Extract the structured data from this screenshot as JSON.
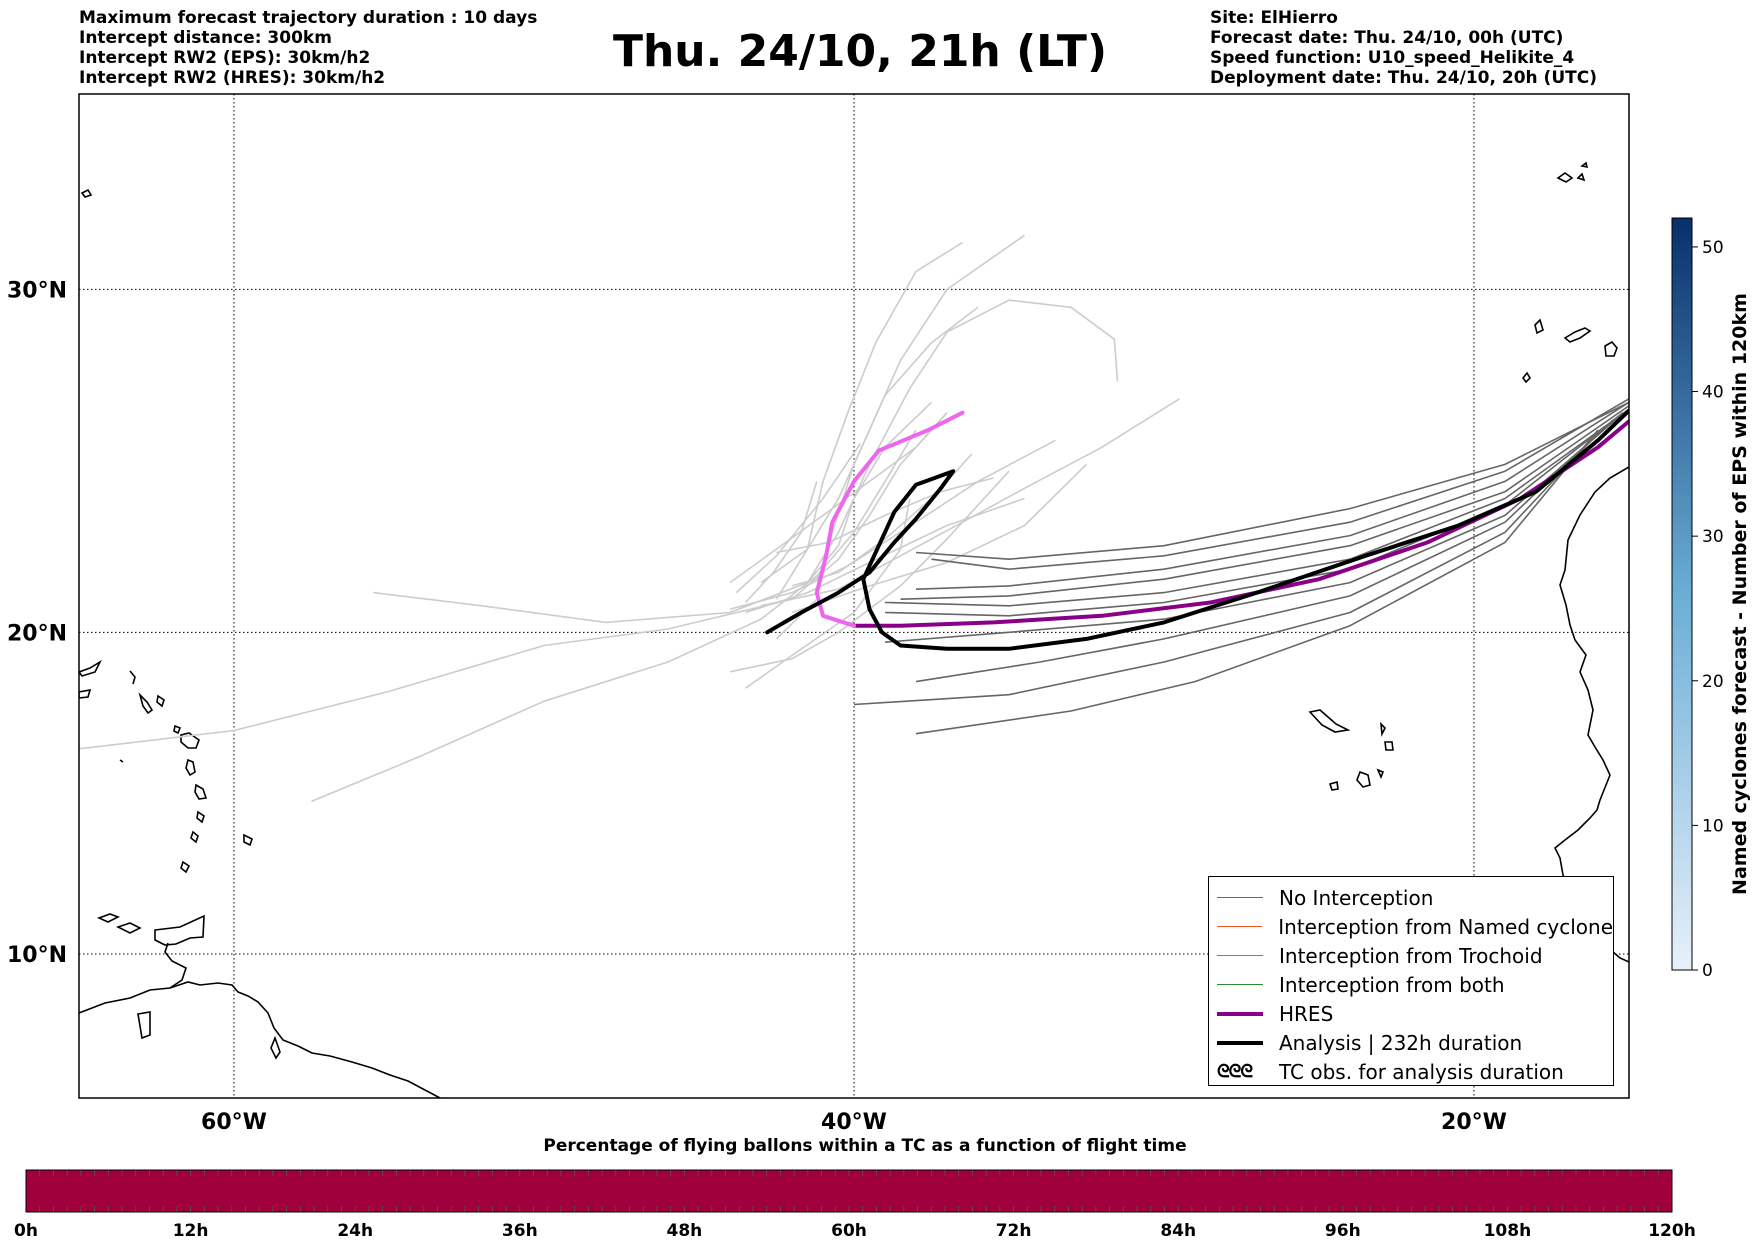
{
  "header": {
    "left_lines": [
      "Maximum forecast trajectory duration : 10 days",
      "Intercept distance: 300km",
      "Intercept RW2 (EPS):  30km/h2",
      "Intercept RW2 (HRES): 30km/h2"
    ],
    "title": "Thu. 24/10, 21h (LT)",
    "right_lines": [
      "Site: ElHierro",
      "Forecast date: Thu. 24/10, 00h (UTC)",
      "Speed function: U10_speed_Helikite_4",
      "Deployment date: Thu. 24/10, 20h (UTC)"
    ]
  },
  "map": {
    "lat_labels": [
      "30°N",
      "20°N",
      "10°N"
    ],
    "lon_labels": [
      "60°W",
      "40°W",
      "20°W"
    ],
    "lat_values": [
      30,
      20,
      10
    ],
    "lon_values": [
      -60,
      -40,
      -20
    ],
    "extent": {
      "lon_min": -65,
      "lon_max": -15,
      "lat_min": 5.4,
      "lat_max": 35.3
    },
    "colors": {
      "no_interception_dark": "#666666",
      "no_interception_light": "#cccccc",
      "hres_past": "#880088",
      "hres_forecast": "#ee66ee",
      "analysis": "#000000",
      "named_cyclone": "#ee5522",
      "trochoid": "#888833",
      "both": "#338833"
    }
  },
  "trajectories": {
    "hres": [
      [
        -14.4,
        26.7
      ],
      [
        -16,
        25.5
      ],
      [
        -18.5,
        24
      ],
      [
        -21.5,
        22.7
      ],
      [
        -25,
        21.6
      ],
      [
        -28.5,
        20.9
      ],
      [
        -32,
        20.5
      ],
      [
        -35.5,
        20.3
      ],
      [
        -38.5,
        20.2
      ],
      [
        -40,
        20.2
      ],
      [
        -41,
        20.5
      ],
      [
        -41.2,
        21.2
      ],
      [
        -40.9,
        22.3
      ],
      [
        -40.7,
        23.3
      ],
      [
        -40,
        24.5
      ],
      [
        -39.2,
        25.4
      ],
      [
        -37.6,
        26
      ],
      [
        -36.5,
        26.5
      ]
    ],
    "hres_split_index": 9,
    "analysis": [
      [
        -14.6,
        26.9
      ],
      [
        -16,
        25.7
      ],
      [
        -18,
        24.2
      ],
      [
        -20.5,
        23.2
      ],
      [
        -23.5,
        22.3
      ],
      [
        -27,
        21.2
      ],
      [
        -30,
        20.3
      ],
      [
        -32.5,
        19.8
      ],
      [
        -35,
        19.5
      ],
      [
        -37,
        19.5
      ],
      [
        -38.5,
        19.6
      ],
      [
        -39.1,
        20
      ],
      [
        -39.5,
        20.7
      ],
      [
        -39.7,
        21.6
      ],
      [
        -39.2,
        22.6
      ],
      [
        -38.7,
        23.6
      ],
      [
        -38,
        24.4
      ],
      [
        -36.8,
        24.8
      ],
      [
        -37.2,
        24.3
      ],
      [
        -38,
        23.4
      ],
      [
        -38.7,
        22.7
      ],
      [
        -39.5,
        21.8
      ],
      [
        -40.5,
        21.2
      ],
      [
        -41.7,
        20.6
      ],
      [
        -42.8,
        20
      ]
    ],
    "eps_dark": [
      [
        [
          -15,
          26.8
        ],
        [
          -19,
          24.5
        ],
        [
          -24,
          22.9
        ],
        [
          -30,
          21.9
        ],
        [
          -35,
          21.4
        ],
        [
          -38,
          21.3
        ]
      ],
      [
        [
          -15,
          26.7
        ],
        [
          -19,
          24.2
        ],
        [
          -24,
          22.6
        ],
        [
          -30,
          21.6
        ],
        [
          -35,
          21.1
        ],
        [
          -38.5,
          21
        ]
      ],
      [
        [
          -15,
          26.6
        ],
        [
          -19,
          24
        ],
        [
          -24,
          22.2
        ],
        [
          -30,
          21.2
        ],
        [
          -35,
          20.8
        ],
        [
          -39,
          20.9
        ]
      ],
      [
        [
          -15.2,
          26.5
        ],
        [
          -19,
          23.8
        ],
        [
          -24,
          21.9
        ],
        [
          -30,
          20.9
        ],
        [
          -35,
          20.5
        ],
        [
          -39,
          20.6
        ]
      ],
      [
        [
          -15.3,
          26.4
        ],
        [
          -19,
          23.5
        ],
        [
          -24,
          21.5
        ],
        [
          -30,
          20.4
        ],
        [
          -35,
          20
        ],
        [
          -39,
          19.7
        ]
      ],
      [
        [
          -15.5,
          26.3
        ],
        [
          -19,
          23.3
        ],
        [
          -24,
          21.1
        ],
        [
          -30,
          19.8
        ],
        [
          -34,
          19.1
        ],
        [
          -38,
          18.5
        ]
      ],
      [
        [
          -15.8,
          26.1
        ],
        [
          -19,
          23
        ],
        [
          -24,
          20.6
        ],
        [
          -30,
          19.1
        ],
        [
          -35,
          18.1
        ],
        [
          -40,
          17.8
        ]
      ],
      [
        [
          -16,
          26
        ],
        [
          -19,
          22.7
        ],
        [
          -24,
          20.2
        ],
        [
          -29,
          18.5
        ],
        [
          -33,
          17.6
        ],
        [
          -38,
          16.9
        ]
      ],
      [
        [
          -15,
          26.9
        ],
        [
          -19,
          24.8
        ],
        [
          -24,
          23.3
        ],
        [
          -30,
          22.3
        ],
        [
          -35,
          21.9
        ],
        [
          -37.5,
          22.2
        ]
      ],
      [
        [
          -15,
          26.8
        ],
        [
          -19,
          25
        ],
        [
          -24,
          23.7
        ],
        [
          -30,
          22.6
        ],
        [
          -35,
          22.2
        ],
        [
          -38,
          22.4
        ]
      ]
    ],
    "eps_light": [
      [
        [
          -37,
          26.5
        ],
        [
          -38.5,
          25
        ],
        [
          -39.5,
          23.5
        ],
        [
          -40.5,
          22.2
        ],
        [
          -42,
          21
        ],
        [
          -46,
          20.1
        ],
        [
          -50,
          19.6
        ],
        [
          -55,
          18.2
        ],
        [
          -60,
          17
        ],
        [
          -65.3,
          16.4
        ]
      ],
      [
        [
          -38,
          26
        ],
        [
          -39,
          24.5
        ],
        [
          -40,
          23
        ],
        [
          -41.2,
          21.7
        ],
        [
          -43,
          20.4
        ],
        [
          -46,
          19.1
        ],
        [
          -50,
          17.9
        ],
        [
          -54,
          16.2
        ],
        [
          -57.5,
          14.8
        ]
      ],
      [
        [
          -37.5,
          26.8
        ],
        [
          -39,
          25.5
        ],
        [
          -40,
          24
        ],
        [
          -40.5,
          22.6
        ],
        [
          -41.5,
          21.5
        ],
        [
          -44,
          20.6
        ],
        [
          -48,
          20.3
        ],
        [
          -52,
          20.8
        ],
        [
          -55.5,
          21.2
        ]
      ],
      [
        [
          -36,
          29.5
        ],
        [
          -37.5,
          28.5
        ],
        [
          -39,
          27
        ],
        [
          -40,
          25
        ],
        [
          -40.7,
          23
        ],
        [
          -41.2,
          21
        ],
        [
          -42.5,
          19.8
        ]
      ],
      [
        [
          -34.5,
          31.5
        ],
        [
          -37,
          30
        ],
        [
          -38.5,
          28
        ],
        [
          -39.5,
          26
        ],
        [
          -40.5,
          24
        ],
        [
          -41.5,
          22.5
        ],
        [
          -43,
          21.5
        ]
      ],
      [
        [
          -36.5,
          31.3
        ],
        [
          -38,
          30.5
        ],
        [
          -39.3,
          28.5
        ],
        [
          -40.2,
          26.5
        ],
        [
          -41,
          24.5
        ],
        [
          -41.5,
          22.5
        ],
        [
          -42.5,
          21
        ]
      ],
      [
        [
          -29.5,
          26.9
        ],
        [
          -32,
          25.5
        ],
        [
          -34.5,
          24.3
        ],
        [
          -36.5,
          23.3
        ],
        [
          -38.5,
          22.3
        ],
        [
          -40.5,
          21.3
        ],
        [
          -43,
          20.8
        ]
      ],
      [
        [
          -31.5,
          27.4
        ],
        [
          -31.6,
          28.6
        ],
        [
          -33,
          29.5
        ],
        [
          -35,
          29.7
        ],
        [
          -37,
          28.8
        ],
        [
          -38.2,
          27.2
        ],
        [
          -39.5,
          25
        ],
        [
          -40.5,
          23
        ],
        [
          -41.5,
          21.5
        ]
      ],
      [
        [
          -33.5,
          25.7
        ],
        [
          -36,
          24.5
        ],
        [
          -38,
          23.3
        ],
        [
          -40.2,
          22
        ],
        [
          -42,
          21.2
        ],
        [
          -44,
          20.7
        ]
      ],
      [
        [
          -34.5,
          24
        ],
        [
          -37,
          23.2
        ],
        [
          -39.5,
          22.1
        ],
        [
          -41.5,
          21.2
        ],
        [
          -43.5,
          20.6
        ]
      ],
      [
        [
          -32.5,
          25
        ],
        [
          -34.5,
          23.2
        ],
        [
          -37,
          22.1
        ],
        [
          -39.5,
          21.4
        ],
        [
          -42,
          20.6
        ]
      ],
      [
        [
          -41.2,
          24.5
        ],
        [
          -41.7,
          23
        ],
        [
          -42.6,
          21.8
        ],
        [
          -43.5,
          20.9
        ]
      ],
      [
        [
          -37,
          26.5
        ],
        [
          -38,
          25.5
        ],
        [
          -39.5,
          24.5
        ],
        [
          -41,
          23.5
        ],
        [
          -42.5,
          22.5
        ],
        [
          -44,
          21.5
        ]
      ],
      [
        [
          -35,
          24.8
        ],
        [
          -37,
          22.8
        ],
        [
          -38.5,
          21.4
        ],
        [
          -40.5,
          20
        ],
        [
          -42,
          19.2
        ],
        [
          -44,
          18.8
        ]
      ],
      [
        [
          -39.8,
          25.6
        ],
        [
          -41,
          24
        ],
        [
          -42.5,
          22.3
        ],
        [
          -43.8,
          21.2
        ]
      ],
      [
        [
          -38.2,
          24
        ],
        [
          -38.5,
          22.5
        ],
        [
          -40,
          20.6
        ],
        [
          -42,
          19.3
        ],
        [
          -43.5,
          18.3
        ]
      ],
      [
        [
          -36.2,
          25.3
        ],
        [
          -37.5,
          24
        ],
        [
          -39,
          22.8
        ],
        [
          -40.5,
          21.8
        ],
        [
          -42,
          21.4
        ]
      ],
      [
        [
          -35.5,
          24.6
        ],
        [
          -37.2,
          24.2
        ],
        [
          -39,
          23.5
        ],
        [
          -40.8,
          22.7
        ],
        [
          -42.5,
          22.4
        ]
      ]
    ]
  },
  "legend": {
    "items": [
      {
        "label": "No Interception",
        "color": "#666666",
        "width": 1.5
      },
      {
        "label": "Interception from Named cyclone",
        "color": "#ee5522",
        "width": 1.5
      },
      {
        "label": "Interception from Trochoid",
        "color": "#888833",
        "width": 1.5
      },
      {
        "label": "Interception from both",
        "color": "#338833",
        "width": 1.5
      },
      {
        "label": "HRES",
        "color": "#880088",
        "width": 4
      },
      {
        "label": "Analysis | 232h duration",
        "color": "#000000",
        "width": 4
      }
    ],
    "tc_symbol": "ᘓᘓᘓ",
    "tc_label": "TC obs. for analysis duration"
  },
  "colorbar_right": {
    "label": "Named cyclones forecast - Number of EPS within 120km",
    "ticks": [
      0,
      10,
      20,
      30,
      40,
      50
    ],
    "max": 52,
    "color_low": "#e8f0fa",
    "color_high": "#08306b"
  },
  "bottom_bar": {
    "title": "Percentage of flying ballons within a TC as a function of flight time",
    "ticks": [
      "0h",
      "12h",
      "24h",
      "36h",
      "48h",
      "60h",
      "72h",
      "84h",
      "96h",
      "108h",
      "120h"
    ],
    "color": "#a0003c",
    "segments": 120
  }
}
